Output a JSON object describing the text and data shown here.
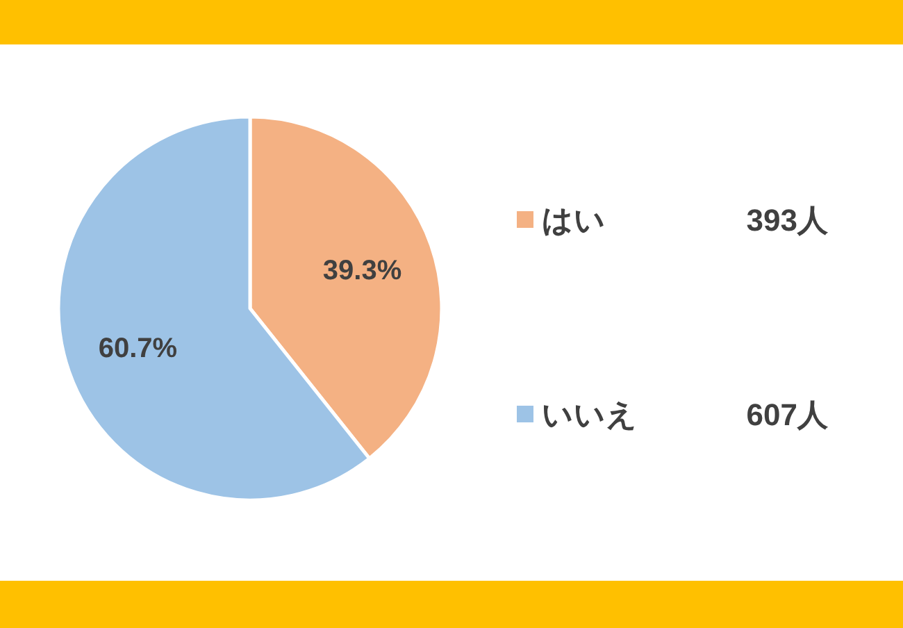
{
  "chart_data": {
    "type": "pie",
    "categories": [
      "はい",
      "いいえ"
    ],
    "values": [
      39.3,
      60.7
    ],
    "colors": [
      "#f4b183",
      "#9dc3e6"
    ],
    "value_labels": [
      "39.3%",
      "60.7%"
    ],
    "legend": "right",
    "annotations": [
      "393人",
      "607人"
    ]
  }
}
